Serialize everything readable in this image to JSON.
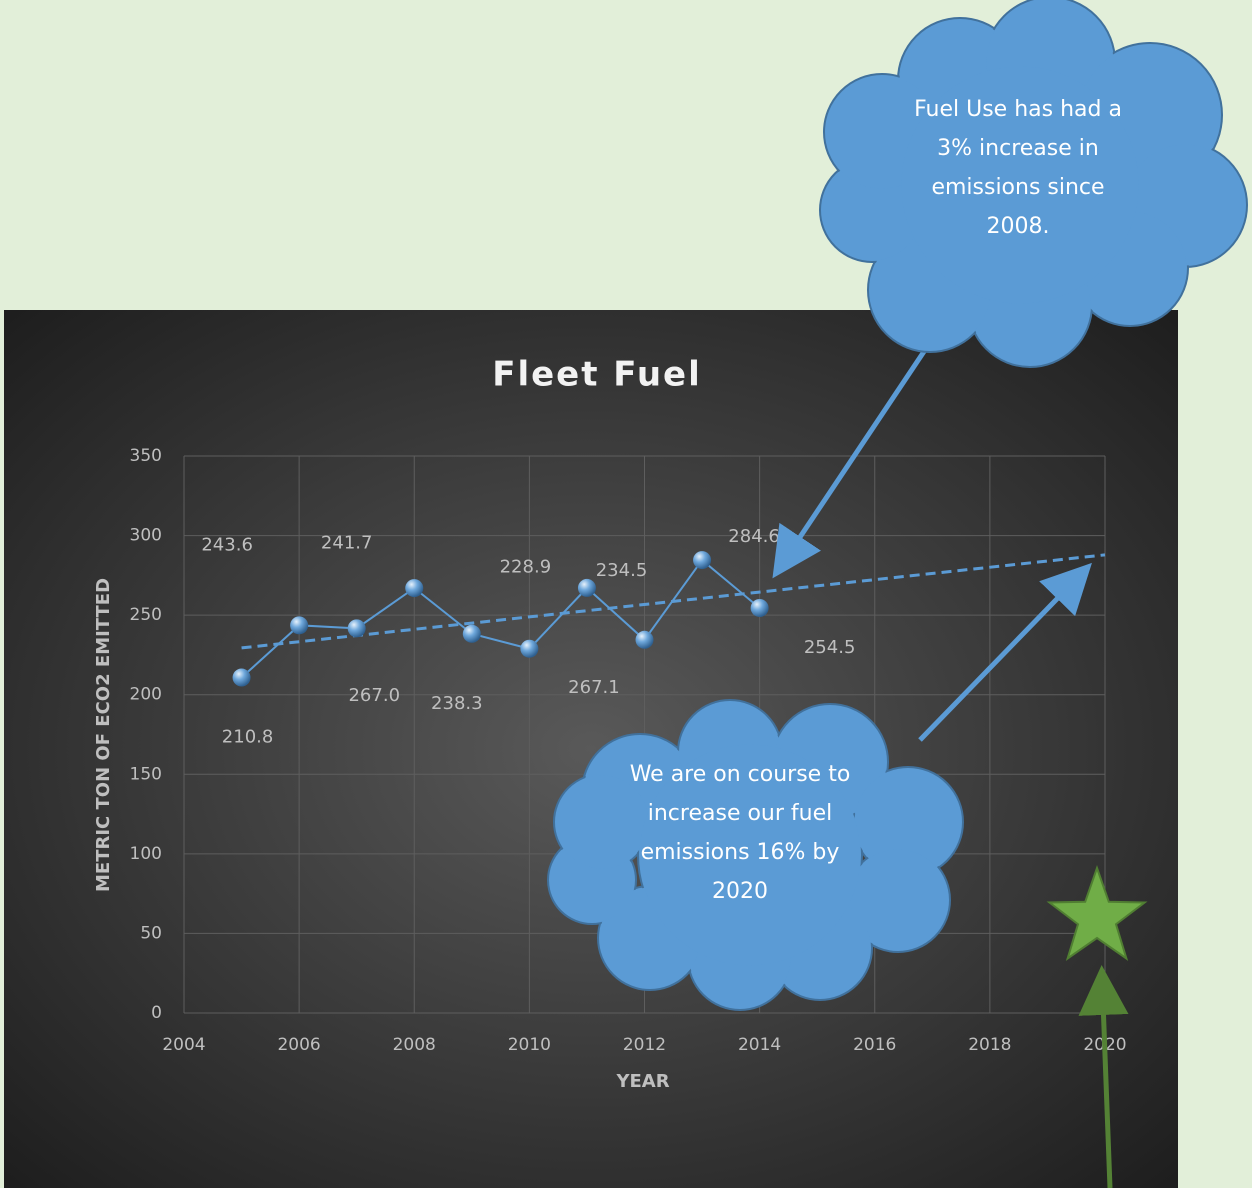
{
  "chart_data": {
    "type": "line",
    "title": "Fleet Fuel",
    "x_label": "YEAR",
    "y_label": "METRIC TON OF ECO2 EMITTED",
    "x": [
      2005,
      2006,
      2007,
      2008,
      2009,
      2010,
      2011,
      2012,
      2013,
      2014
    ],
    "series": [
      {
        "color": "#5b9bd5",
        "values": [
          210.8,
          243.6,
          241.7,
          267.0,
          238.3,
          228.9,
          267.1,
          234.5,
          284.6,
          254.5
        ],
        "value_labels": [
          "210.8",
          "243.6",
          "241.7",
          "267.0",
          "238.3",
          "228.9",
          "267.1",
          "234.5",
          "284.6",
          "254.5"
        ]
      }
    ],
    "trend": {
      "x": [
        2005,
        2020
      ],
      "values": [
        229.4,
        287.9
      ],
      "color": "#5b9bd5",
      "dashed": true
    },
    "xlim": [
      2004,
      2020
    ],
    "xticks": [
      2004,
      2006,
      2008,
      2010,
      2012,
      2014,
      2016,
      2018,
      2020
    ],
    "ylim": [
      0,
      350
    ],
    "yticks": [
      0,
      50,
      100,
      150,
      200,
      250,
      300,
      350
    ],
    "grid": true,
    "annotations": [
      "Fuel Use has had a 3% increase in emissions since 2008.",
      "We are on course to increase our fuel emissions 16% by 2020"
    ]
  }
}
